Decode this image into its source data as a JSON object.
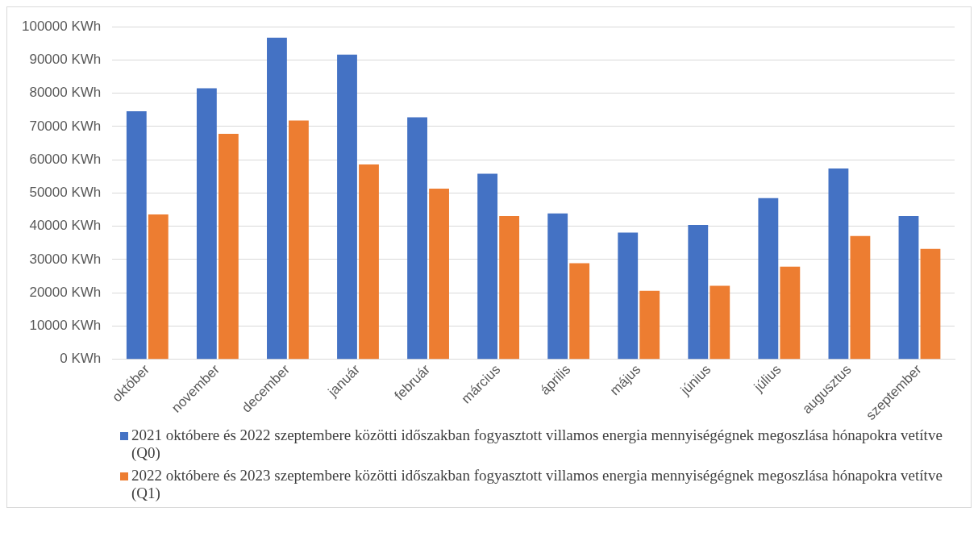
{
  "chart_data": {
    "type": "bar",
    "categories": [
      "október",
      "november",
      "december",
      "január",
      "február",
      "március",
      "április",
      "május",
      "június",
      "július",
      "augusztus",
      "szeptember"
    ],
    "series": [
      {
        "name": "2021 októbere és 2022 szeptembere közötti időszakban fogyasztott villamos energia mennyiségégnek megoszlása hónapokra vetítve (Q0)",
        "color": "#4472c4",
        "values": [
          74600,
          81500,
          96700,
          91600,
          72800,
          55800,
          43900,
          38100,
          40400,
          48500,
          57400,
          43100
        ]
      },
      {
        "name": "2022 októbere és 2023 szeptembere közötti időszakban fogyasztott villamos energia mennyiségégnek megoszlása hónapokra vetítve (Q1)",
        "color": "#ed7d31",
        "values": [
          43600,
          67800,
          71800,
          58600,
          51300,
          43100,
          28900,
          20600,
          22100,
          27900,
          37100,
          33200
        ]
      }
    ],
    "ylim": [
      0,
      100000
    ],
    "yticks": [
      {
        "value": 0,
        "label": "0 KWh"
      },
      {
        "value": 10000,
        "label": "10000 KWh"
      },
      {
        "value": 20000,
        "label": "20000 KWh"
      },
      {
        "value": 30000,
        "label": "30000 KWh"
      },
      {
        "value": 40000,
        "label": "40000 KWh"
      },
      {
        "value": 50000,
        "label": "50000 KWh"
      },
      {
        "value": 60000,
        "label": "60000 KWh"
      },
      {
        "value": 70000,
        "label": "70000 KWh"
      },
      {
        "value": 80000,
        "label": "80000 KWh"
      },
      {
        "value": 90000,
        "label": "90000 KWh"
      },
      {
        "value": 100000,
        "label": "100000 KWh"
      }
    ],
    "grid": "y",
    "legend": "bottom"
  }
}
